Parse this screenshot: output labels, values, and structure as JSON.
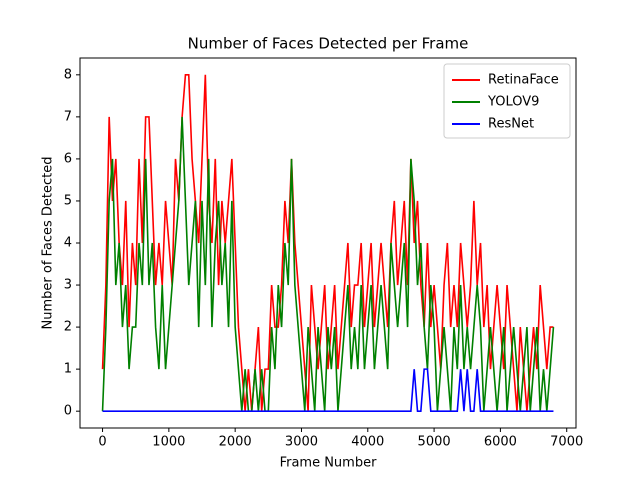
{
  "chart_data": {
    "type": "line",
    "title": "Number of Faces Detected per Frame",
    "x_label": "Frame Number",
    "y_label": "Number of Faces Detected",
    "x": [
      0,
      50,
      100,
      150,
      200,
      250,
      300,
      350,
      400,
      450,
      500,
      550,
      600,
      650,
      700,
      750,
      800,
      850,
      900,
      950,
      1000,
      1050,
      1100,
      1150,
      1200,
      1250,
      1300,
      1350,
      1400,
      1450,
      1500,
      1550,
      1600,
      1650,
      1700,
      1750,
      1800,
      1850,
      1900,
      1950,
      2000,
      2050,
      2100,
      2150,
      2200,
      2250,
      2300,
      2350,
      2400,
      2450,
      2500,
      2550,
      2600,
      2650,
      2700,
      2750,
      2800,
      2850,
      2900,
      2950,
      3000,
      3050,
      3100,
      3150,
      3200,
      3250,
      3300,
      3350,
      3400,
      3450,
      3500,
      3550,
      3600,
      3650,
      3700,
      3750,
      3800,
      3850,
      3900,
      3950,
      4000,
      4050,
      4100,
      4150,
      4200,
      4250,
      4300,
      4350,
      4400,
      4450,
      4500,
      4550,
      4600,
      4650,
      4700,
      4750,
      4800,
      4850,
      4900,
      4950,
      5000,
      5050,
      5100,
      5150,
      5200,
      5250,
      5300,
      5350,
      5400,
      5450,
      5500,
      5550,
      5600,
      5650,
      5700,
      5750,
      5800,
      5850,
      5900,
      5950,
      6000,
      6050,
      6100,
      6150,
      6200,
      6250,
      6300,
      6350,
      6400,
      6450,
      6500,
      6550,
      6600,
      6650,
      6700,
      6750,
      6800
    ],
    "series": [
      {
        "name": "RetinaFace",
        "color": "#ff0000",
        "values": [
          1,
          3,
          7,
          5,
          6,
          4,
          3,
          5,
          2,
          4,
          3,
          6,
          4,
          7,
          7,
          5,
          3,
          4,
          3,
          5,
          4,
          3,
          6,
          5,
          7,
          8,
          8,
          6,
          5,
          4,
          6,
          8,
          5,
          4,
          6,
          3,
          5,
          4,
          5,
          6,
          4,
          2,
          1,
          0,
          1,
          0,
          1,
          2,
          0,
          1,
          1,
          3,
          2,
          2,
          3,
          5,
          4,
          6,
          4,
          3,
          2,
          1,
          0,
          3,
          2,
          1,
          2,
          3,
          1,
          2,
          3,
          1,
          2,
          3,
          4,
          2,
          3,
          3,
          4,
          2,
          3,
          4,
          2,
          3,
          4,
          3,
          2,
          4,
          5,
          3,
          4,
          5,
          3,
          6,
          4,
          5,
          3,
          2,
          4,
          2,
          3,
          2,
          1,
          3,
          4,
          2,
          3,
          2,
          4,
          3,
          2,
          3,
          5,
          3,
          4,
          2,
          3,
          1,
          2,
          3,
          2,
          1,
          3,
          2,
          1,
          0,
          2,
          1,
          0,
          1,
          2,
          1,
          3,
          2,
          1,
          2,
          2
        ]
      },
      {
        "name": "YOLOV9",
        "color": "#008000",
        "values": [
          0,
          2,
          5,
          6,
          3,
          4,
          2,
          3,
          1,
          2,
          2,
          4,
          3,
          6,
          3,
          4,
          2,
          1,
          3,
          1,
          2,
          3,
          4,
          5,
          7,
          5,
          3,
          4,
          5,
          2,
          5,
          3,
          6,
          2,
          4,
          5,
          3,
          4,
          2,
          5,
          2,
          1,
          0,
          1,
          0,
          0,
          1,
          0,
          1,
          0,
          0,
          2,
          1,
          3,
          2,
          4,
          3,
          6,
          3,
          2,
          1,
          0,
          2,
          1,
          0,
          2,
          1,
          0,
          2,
          1,
          2,
          0,
          1,
          2,
          3,
          1,
          2,
          1,
          3,
          1,
          2,
          3,
          1,
          2,
          3,
          2,
          1,
          4,
          3,
          2,
          3,
          4,
          2,
          6,
          5,
          3,
          4,
          2,
          1,
          3,
          2,
          0,
          1,
          2,
          1,
          0,
          2,
          1,
          3,
          1,
          2,
          1,
          2,
          3,
          2,
          0,
          1,
          2,
          1,
          0,
          1,
          2,
          0,
          1,
          2,
          1,
          0,
          1,
          2,
          0,
          1,
          2,
          0,
          1,
          0,
          1,
          2
        ]
      },
      {
        "name": "ResNet",
        "color": "#0000ff",
        "values": [
          0,
          0,
          0,
          0,
          0,
          0,
          0,
          0,
          0,
          0,
          0,
          0,
          0,
          0,
          0,
          0,
          0,
          0,
          0,
          0,
          0,
          0,
          0,
          0,
          0,
          0,
          0,
          0,
          0,
          0,
          0,
          0,
          0,
          0,
          0,
          0,
          0,
          0,
          0,
          0,
          0,
          0,
          0,
          0,
          0,
          0,
          0,
          0,
          0,
          0,
          0,
          0,
          0,
          0,
          0,
          0,
          0,
          0,
          0,
          0,
          0,
          0,
          0,
          0,
          0,
          0,
          0,
          0,
          0,
          0,
          0,
          0,
          0,
          0,
          0,
          0,
          0,
          0,
          0,
          0,
          0,
          0,
          0,
          0,
          0,
          0,
          0,
          0,
          0,
          0,
          0,
          0,
          0,
          0,
          1,
          0,
          0,
          1,
          1,
          0,
          0,
          0,
          0,
          0,
          0,
          0,
          0,
          0,
          1,
          0,
          1,
          0,
          0,
          1,
          0,
          0,
          0,
          0,
          0,
          0,
          0,
          0,
          0,
          0,
          0,
          0,
          0,
          0,
          0,
          0,
          0,
          0,
          0,
          0,
          0,
          0,
          0
        ]
      }
    ],
    "xlim": [
      -340,
      7140
    ],
    "ylim": [
      -0.4,
      8.4
    ],
    "xticks": [
      0,
      1000,
      2000,
      3000,
      4000,
      5000,
      6000,
      7000
    ],
    "yticks": [
      0,
      1,
      2,
      3,
      4,
      5,
      6,
      7,
      8
    ],
    "legend": "upper right"
  }
}
